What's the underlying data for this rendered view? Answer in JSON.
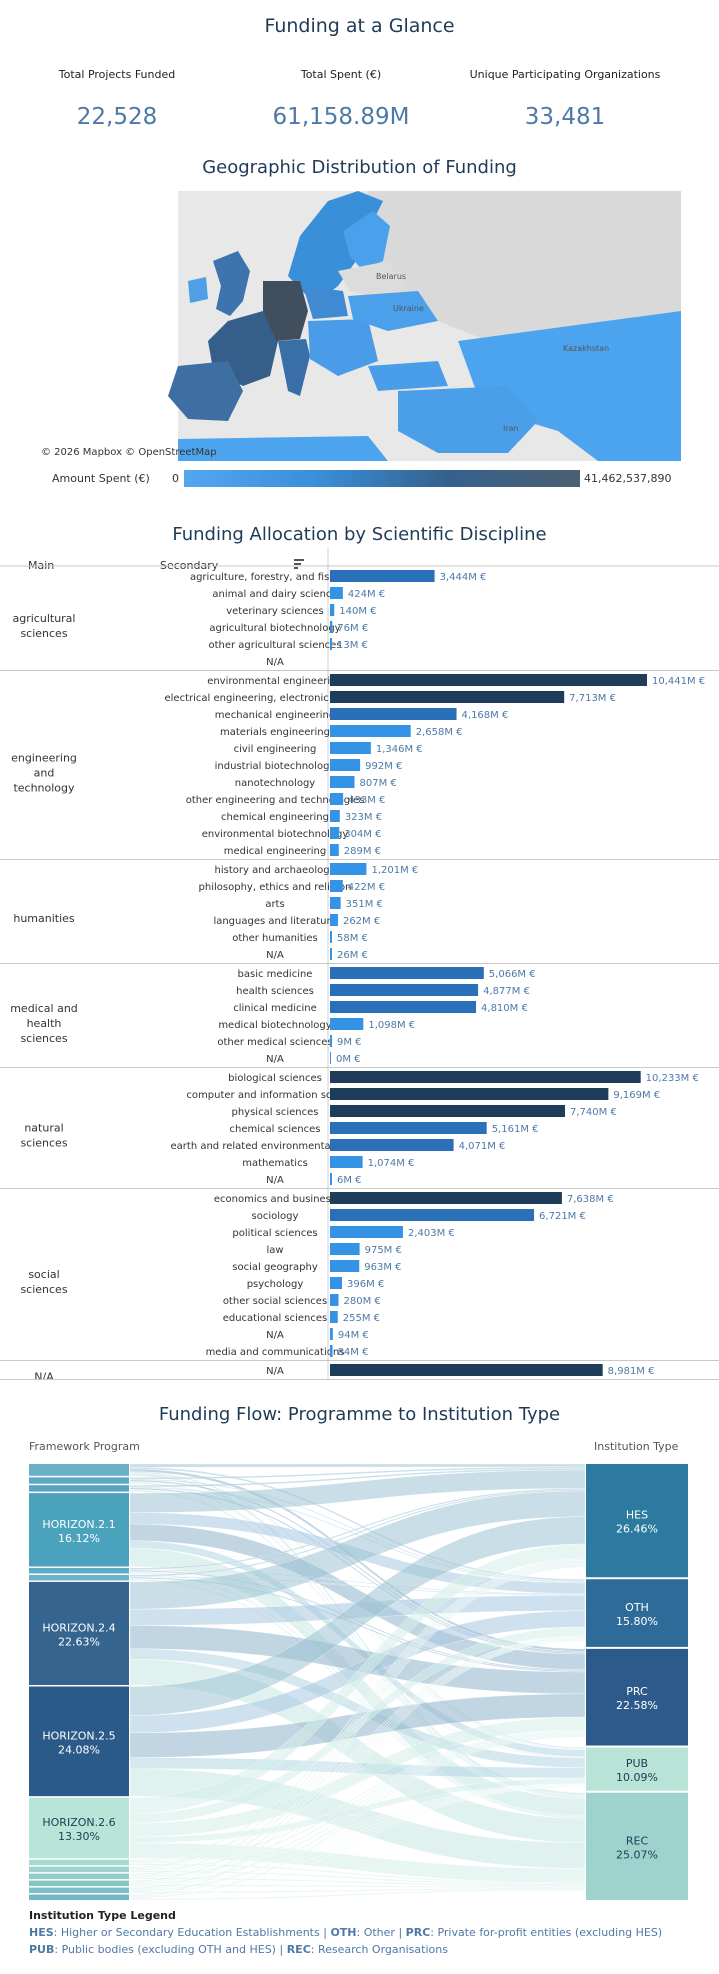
{
  "titles": {
    "glance": "Funding at a Glance",
    "map": "Geographic Distribution of Funding",
    "discipline": "Funding Allocation by Scientific Discipline",
    "flow": "Funding Flow: Programme to Institution Type"
  },
  "kpis": [
    {
      "label": "Total Projects Funded",
      "value": "22,528"
    },
    {
      "label": "Total Spent (€)",
      "value": "61,158.89M"
    },
    {
      "label": "Unique Participating Organizations",
      "value": "33,481"
    }
  ],
  "map": {
    "credit": "© 2026 Mapbox  © OpenStreetMap",
    "legend_label": "Amount Spent (€)",
    "legend_min": "0",
    "legend_max": "41,462,537,890",
    "place_labels": [
      "Belarus",
      "Ukraine",
      "Kazakhstan",
      "Iran"
    ],
    "colors": {
      "low": "#54a6ef",
      "high": "#4b5f71",
      "background": "#e8e8e8"
    }
  },
  "discipline_headers": {
    "main": "Main",
    "secondary": "Secondary"
  },
  "chart_data": [
    {
      "type": "bar",
      "orientation": "horizontal",
      "title": "Funding Allocation by Scientific Discipline",
      "unit": "M €",
      "groups": [
        {
          "main": "agricultural sciences",
          "rows": [
            {
              "secondary": "agriculture, forestry, and fisheries",
              "value": 3444,
              "label": "3,444M €"
            },
            {
              "secondary": "animal and dairy science",
              "value": 424,
              "label": "424M €"
            },
            {
              "secondary": "veterinary sciences",
              "value": 140,
              "label": "140M €"
            },
            {
              "secondary": "agricultural biotechnology",
              "value": 76,
              "label": "76M €"
            },
            {
              "secondary": "other agricultural sciences",
              "value": 13,
              "label": "13M €"
            },
            {
              "secondary": "N/A",
              "value": 0,
              "label": ""
            }
          ]
        },
        {
          "main": "engineering and technology",
          "rows": [
            {
              "secondary": "environmental engineering",
              "value": 10441,
              "label": "10,441M €"
            },
            {
              "secondary": "electrical engineering, electronic engineeri..",
              "value": 7713,
              "label": "7,713M €"
            },
            {
              "secondary": "mechanical engineering",
              "value": 4168,
              "label": "4,168M €"
            },
            {
              "secondary": "materials engineering",
              "value": 2658,
              "label": "2,658M €"
            },
            {
              "secondary": "civil engineering",
              "value": 1346,
              "label": "1,346M €"
            },
            {
              "secondary": "industrial biotechnology",
              "value": 992,
              "label": "992M €"
            },
            {
              "secondary": "nanotechnology",
              "value": 807,
              "label": "807M €"
            },
            {
              "secondary": "other engineering and technologies",
              "value": 433,
              "label": "433M €"
            },
            {
              "secondary": "chemical engineering",
              "value": 323,
              "label": "323M €"
            },
            {
              "secondary": "environmental biotechnology",
              "value": 304,
              "label": "304M €"
            },
            {
              "secondary": "medical engineering",
              "value": 289,
              "label": "289M €"
            }
          ]
        },
        {
          "main": "humanities",
          "rows": [
            {
              "secondary": "history and archaeology",
              "value": 1201,
              "label": "1,201M €"
            },
            {
              "secondary": "philosophy, ethics and religion",
              "value": 422,
              "label": "422M €"
            },
            {
              "secondary": "arts",
              "value": 351,
              "label": "351M €"
            },
            {
              "secondary": "languages and literature",
              "value": 262,
              "label": "262M €"
            },
            {
              "secondary": "other humanities",
              "value": 58,
              "label": "58M €"
            },
            {
              "secondary": "N/A",
              "value": 26,
              "label": "26M €"
            }
          ]
        },
        {
          "main": "medical and health sciences",
          "rows": [
            {
              "secondary": "basic medicine",
              "value": 5066,
              "label": "5,066M €"
            },
            {
              "secondary": "health sciences",
              "value": 4877,
              "label": "4,877M €"
            },
            {
              "secondary": "clinical medicine",
              "value": 4810,
              "label": "4,810M €"
            },
            {
              "secondary": "medical biotechnology",
              "value": 1098,
              "label": "1,098M €"
            },
            {
              "secondary": "other medical sciences",
              "value": 9,
              "label": "9M €"
            },
            {
              "secondary": "N/A",
              "value": 0,
              "label": "0M €"
            }
          ]
        },
        {
          "main": "natural sciences",
          "rows": [
            {
              "secondary": "biological sciences",
              "value": 10233,
              "label": "10,233M €"
            },
            {
              "secondary": "computer and information sciences",
              "value": 9169,
              "label": "9,169M €"
            },
            {
              "secondary": "physical sciences",
              "value": 7740,
              "label": "7,740M €"
            },
            {
              "secondary": "chemical sciences",
              "value": 5161,
              "label": "5,161M €"
            },
            {
              "secondary": "earth and related environmental sciences",
              "value": 4071,
              "label": "4,071M €"
            },
            {
              "secondary": "mathematics",
              "value": 1074,
              "label": "1,074M €"
            },
            {
              "secondary": "N/A",
              "value": 6,
              "label": "6M €"
            }
          ]
        },
        {
          "main": "social sciences",
          "rows": [
            {
              "secondary": "economics and business",
              "value": 7638,
              "label": "7,638M €"
            },
            {
              "secondary": "sociology",
              "value": 6721,
              "label": "6,721M €"
            },
            {
              "secondary": "political sciences",
              "value": 2403,
              "label": "2,403M €"
            },
            {
              "secondary": "law",
              "value": 975,
              "label": "975M €"
            },
            {
              "secondary": "social geography",
              "value": 963,
              "label": "963M €"
            },
            {
              "secondary": "psychology",
              "value": 396,
              "label": "396M €"
            },
            {
              "secondary": "other social sciences",
              "value": 280,
              "label": "280M €"
            },
            {
              "secondary": "educational sciences",
              "value": 255,
              "label": "255M €"
            },
            {
              "secondary": "N/A",
              "value": 94,
              "label": "94M €"
            },
            {
              "secondary": "media and communications",
              "value": 84,
              "label": "84M €"
            }
          ]
        },
        {
          "main": "N/A",
          "rows": [
            {
              "secondary": "N/A",
              "value": 8981,
              "label": "8,981M €"
            }
          ]
        }
      ]
    },
    {
      "type": "sankey",
      "title": "Funding Flow: Programme to Institution Type",
      "left_header": "Framework Program",
      "right_header": "Institution Type",
      "left_nodes": [
        {
          "name": "",
          "share": 2.6
        },
        {
          "name": "",
          "share": 1.4
        },
        {
          "name": "",
          "share": 1.4
        },
        {
          "name": "HORIZON.2.1",
          "pct": "16.12%",
          "share": 16.12
        },
        {
          "name": "",
          "share": 1.2
        },
        {
          "name": "",
          "share": 1.2
        },
        {
          "name": "HORIZON.2.4",
          "pct": "22.63%",
          "share": 22.63
        },
        {
          "name": "HORIZON.2.5",
          "pct": "24.08%",
          "share": 24.08
        },
        {
          "name": "HORIZON.2.6",
          "pct": "13.30%",
          "share": 13.3
        },
        {
          "name": "",
          "share": 1.2
        },
        {
          "name": "",
          "share": 1.2
        },
        {
          "name": "",
          "share": 1.2
        },
        {
          "name": "",
          "share": 1.2
        },
        {
          "name": "",
          "share": 1.2
        },
        {
          "name": "",
          "share": 1.2
        }
      ],
      "right_nodes": [
        {
          "name": "HES",
          "pct": "26.46%",
          "share": 26.46
        },
        {
          "name": "OTH",
          "pct": "15.80%",
          "share": 15.8
        },
        {
          "name": "PRC",
          "pct": "22.58%",
          "share": 22.58
        },
        {
          "name": "PUB",
          "pct": "10.09%",
          "share": 10.09
        },
        {
          "name": "REC",
          "pct": "25.07%",
          "share": 25.07
        }
      ]
    }
  ],
  "institution_legend": {
    "title": "Institution Type Legend",
    "lines": [
      [
        {
          "code": "HES",
          "text": ": Higher or Secondary Education Establishments"
        },
        {
          "code": "OTH",
          "text": ": Other"
        },
        {
          "code": "PRC",
          "text": ": Private for-profit entities (excluding HES)"
        }
      ],
      [
        {
          "code": "PUB",
          "text": ": Public bodies (excluding OTH and HES)"
        },
        {
          "code": "REC",
          "text": ": Research Organisations"
        }
      ]
    ]
  }
}
